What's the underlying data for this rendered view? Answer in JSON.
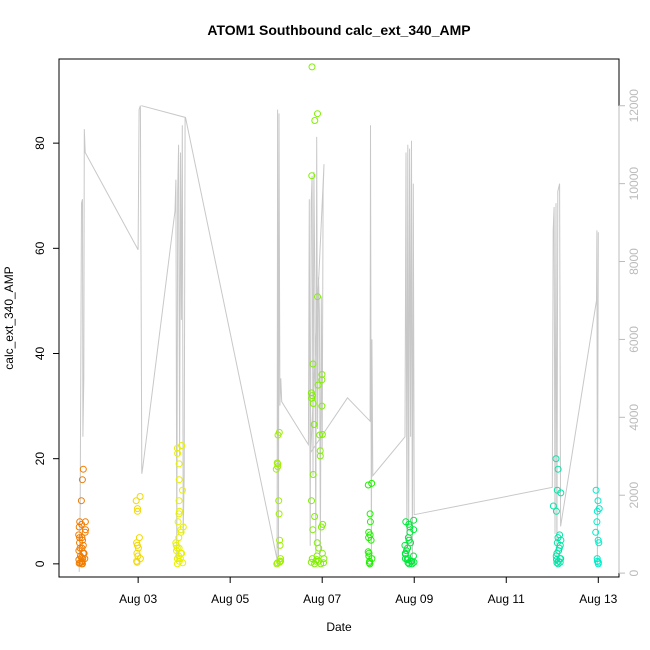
{
  "chart_data": {
    "type": "scatter",
    "title": "ATOM1 Southbound calc_ext_340_AMP",
    "xlabel": "Date",
    "ylabel": "calc_ext_340_AMP",
    "x_unit": "days since Aug 01 00:00",
    "xlim": [
      1.28,
      13.45
    ],
    "ylim": [
      -2.5,
      96
    ],
    "ylim_right": [
      -100,
      13200
    ],
    "x_ticks": [
      {
        "x": 3,
        "label": "Aug 03"
      },
      {
        "x": 5,
        "label": "Aug 05"
      },
      {
        "x": 7,
        "label": "Aug 07"
      },
      {
        "x": 9,
        "label": "Aug 09"
      },
      {
        "x": 11,
        "label": "Aug 11"
      },
      {
        "x": 13,
        "label": "Aug 13"
      }
    ],
    "y_ticks": [
      0,
      20,
      40,
      60,
      80
    ],
    "y_ticks_right": [
      0,
      2000,
      4000,
      6000,
      8000,
      10000,
      12000
    ],
    "series": [
      {
        "name": "calc_ext_340_AMP (points, left axis)",
        "clusters": [
          {
            "x_center": 1.78,
            "x_spread": 0.08,
            "color": "#F07C00",
            "values": [
              0,
              0,
              0.1,
              0.2,
              0.3,
              0.5,
              0.8,
              1,
              1,
              1.2,
              1.5,
              2,
              2,
              2.5,
              3,
              3,
              3.5,
              4,
              4.5,
              5,
              5,
              5.5,
              6,
              6.5,
              7,
              7.5,
              8,
              8,
              12,
              16,
              18
            ]
          },
          {
            "x_center": 3.0,
            "x_spread": 0.05,
            "color": "#F2D800",
            "values": [
              0.3,
              0.5,
              1,
              1.5,
              2,
              3,
              3.5,
              4,
              5,
              10,
              10.5,
              12,
              12.8
            ]
          },
          {
            "x_center": 3.9,
            "x_spread": 0.09,
            "color": "#E8F000",
            "values": [
              0,
              0.2,
              0.5,
              1,
              1,
              1.5,
              2,
              2,
              2.5,
              3,
              3,
              3.5,
              4,
              5,
              6,
              6.5,
              7,
              8,
              9.5,
              10,
              12,
              14,
              16,
              19,
              21,
              22,
              22.5
            ]
          },
          {
            "x_center": 6.05,
            "x_spread": 0.05,
            "color": "#A0F000",
            "values": [
              0,
              0.2,
              0.3,
              0.5,
              0.5,
              1,
              3.5,
              4.5,
              9.5,
              12,
              18,
              18.5,
              19,
              19.2,
              24.5,
              25
            ]
          },
          {
            "x_center": 6.9,
            "x_spread": 0.14,
            "color": "#80F000",
            "values": [
              0,
              0,
              0.2,
              0.3,
              0.5,
              0.5,
              0.8,
              1,
              1,
              1.5,
              2,
              3,
              4,
              6.5,
              7,
              7.5,
              9,
              12,
              17,
              20.5,
              21.5,
              24.5,
              24.6,
              26.5,
              30,
              30.5,
              31.5,
              32,
              32.5,
              34,
              35,
              36,
              38,
              50.8,
              73.8,
              84.3,
              85.6,
              94.5
            ]
          },
          {
            "x_center": 8.05,
            "x_spread": 0.05,
            "color": "#20F000",
            "values": [
              0,
              0.2,
              0.5,
              1,
              1.5,
              2,
              2.3,
              4.5,
              5,
              5.5,
              6,
              8,
              9.5,
              15,
              15.3
            ]
          },
          {
            "x_center": 8.9,
            "x_spread": 0.11,
            "color": "#00E83A",
            "values": [
              0,
              0,
              0.2,
              0.3,
              0.5,
              0.5,
              0.8,
              1,
              1,
              1.5,
              1.8,
              2,
              2.5,
              3,
              3.5,
              4,
              4.5,
              5,
              6,
              6.5,
              7,
              7.5,
              8,
              8.3
            ]
          },
          {
            "x_center": 12.1,
            "x_spread": 0.09,
            "color": "#00E6A8",
            "values": [
              0,
              0.2,
              0.3,
              0.5,
              0.8,
              1,
              1,
              1.5,
              2,
              2.5,
              3,
              3.5,
              4,
              4.5,
              5,
              5.5,
              10,
              11,
              13.5,
              14,
              18,
              20
            ]
          },
          {
            "x_center": 12.98,
            "x_spread": 0.04,
            "color": "#00EBC8",
            "values": [
              0,
              0.3,
              0.5,
              1,
              4,
              4.5,
              6,
              8,
              10,
              10.5,
              12,
              14
            ]
          }
        ]
      },
      {
        "name": "secondary series (grey line, right axis)",
        "color": "#c8c8c8",
        "points": [
          [
            1.72,
            30
          ],
          [
            1.74,
            1700
          ],
          [
            1.75,
            4200
          ],
          [
            1.77,
            9500
          ],
          [
            1.79,
            9600
          ],
          [
            1.8,
            3500
          ],
          [
            1.82,
            5000
          ],
          [
            1.83,
            11400
          ],
          [
            1.85,
            10800
          ],
          [
            3.0,
            8300
          ],
          [
            3.02,
            11900
          ],
          [
            3.05,
            12000
          ],
          [
            3.08,
            2550
          ],
          [
            3.1,
            2700
          ],
          [
            3.8,
            9300
          ],
          [
            3.82,
            10100
          ],
          [
            3.84,
            400
          ],
          [
            3.86,
            9800
          ],
          [
            3.88,
            11000
          ],
          [
            3.9,
            3000
          ],
          [
            3.92,
            10800
          ],
          [
            3.94,
            6500
          ],
          [
            3.96,
            11500
          ],
          [
            3.98,
            1000
          ],
          [
            4.0,
            2500
          ],
          [
            4.02,
            11700
          ],
          [
            3.07,
            12000
          ],
          [
            4.03,
            11700
          ],
          [
            6.02,
            350
          ],
          [
            6.03,
            11900
          ],
          [
            6.05,
            400
          ],
          [
            6.06,
            11800
          ],
          [
            6.08,
            4300
          ],
          [
            6.1,
            5000
          ],
          [
            6.12,
            4400
          ],
          [
            6.7,
            3300
          ],
          [
            6.72,
            9600
          ],
          [
            6.74,
            700
          ],
          [
            6.76,
            9500
          ],
          [
            6.78,
            10200
          ],
          [
            6.8,
            2500
          ],
          [
            6.82,
            10300
          ],
          [
            6.84,
            7500
          ],
          [
            6.86,
            500
          ],
          [
            6.88,
            11200
          ],
          [
            6.9,
            3700
          ],
          [
            6.92,
            7600
          ],
          [
            6.94,
            6700
          ],
          [
            6.96,
            500
          ],
          [
            6.98,
            7100
          ],
          [
            7.0,
            3200
          ],
          [
            7.02,
            9800
          ],
          [
            7.04,
            10500
          ],
          [
            6.75,
            3100
          ],
          [
            7.55,
            4500
          ],
          [
            8.04,
            3900
          ],
          [
            8.05,
            11500
          ],
          [
            8.07,
            200
          ],
          [
            8.08,
            6000
          ],
          [
            8.1,
            2500
          ],
          [
            8.8,
            3500
          ],
          [
            8.82,
            10800
          ],
          [
            8.84,
            500
          ],
          [
            8.86,
            11000
          ],
          [
            8.88,
            1200
          ],
          [
            8.9,
            10900
          ],
          [
            8.92,
            3500
          ],
          [
            8.94,
            11100
          ],
          [
            8.96,
            200
          ],
          [
            8.98,
            10000
          ],
          [
            9.0,
            1500
          ],
          [
            12.0,
            2200
          ],
          [
            12.02,
            8800
          ],
          [
            12.04,
            9400
          ],
          [
            12.06,
            1000
          ],
          [
            12.08,
            9500
          ],
          [
            12.1,
            300
          ],
          [
            12.12,
            9800
          ],
          [
            12.14,
            9900
          ],
          [
            12.16,
            10000
          ],
          [
            12.18,
            1200
          ],
          [
            12.96,
            7000
          ],
          [
            12.97,
            8800
          ],
          [
            12.98,
            200
          ],
          [
            13.0,
            8750
          ]
        ]
      }
    ]
  }
}
